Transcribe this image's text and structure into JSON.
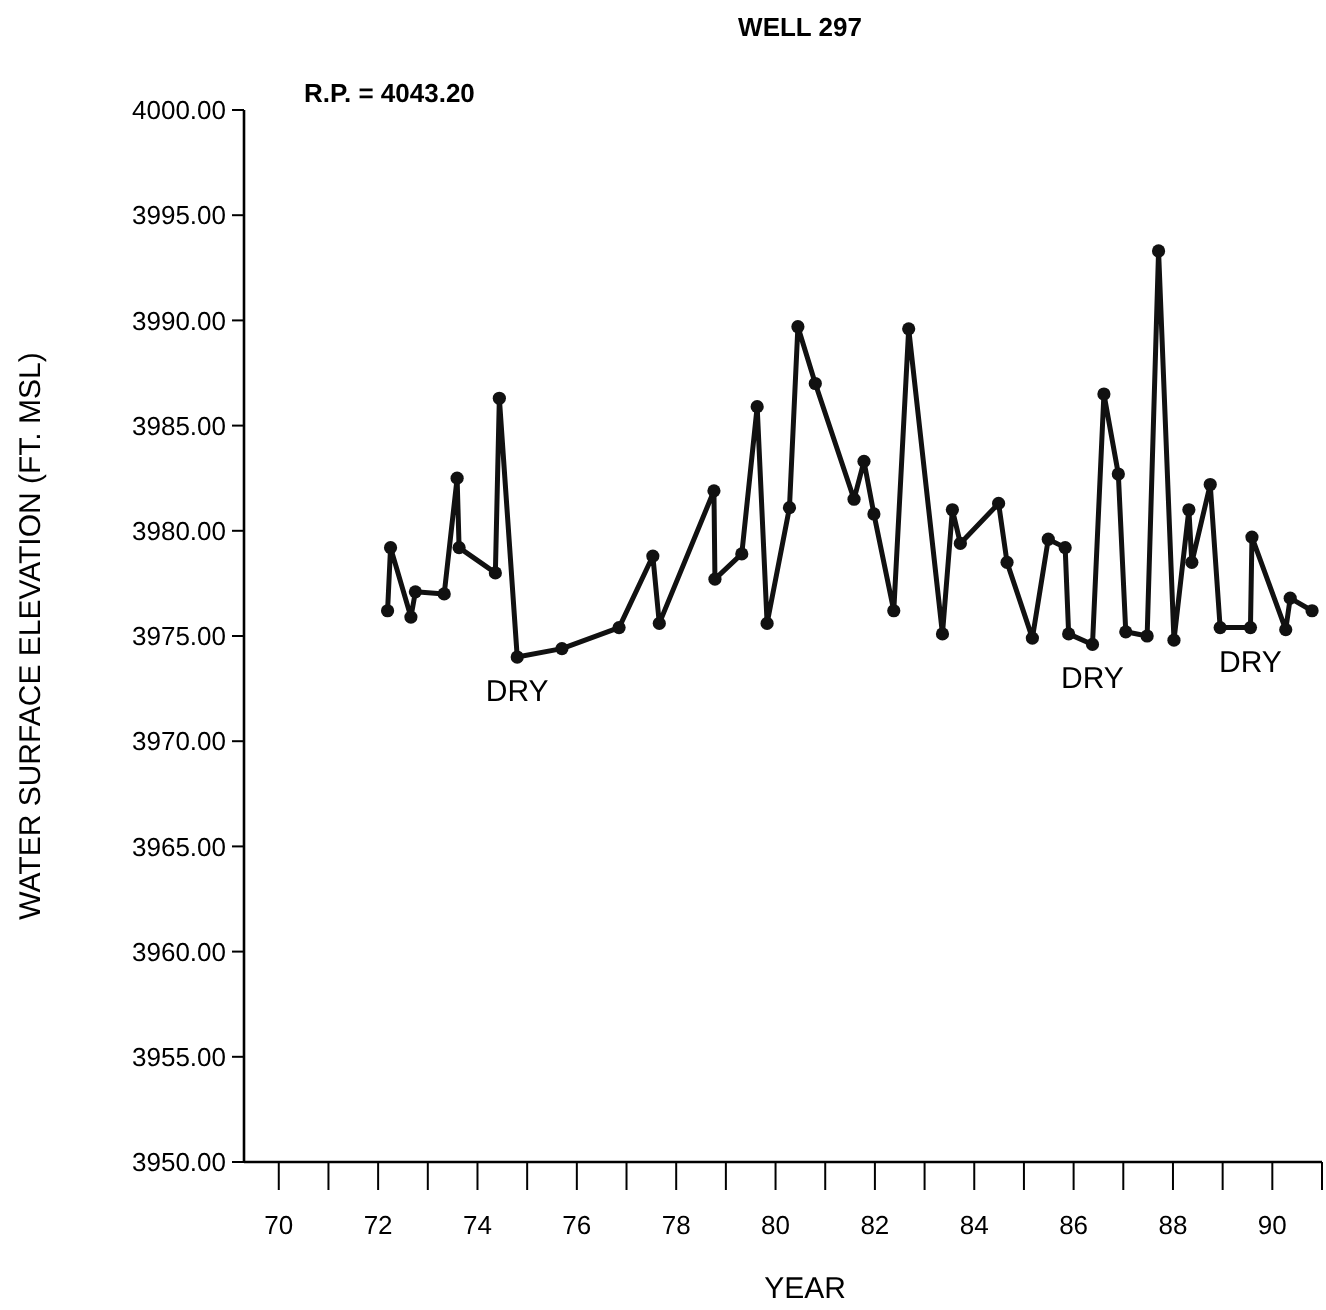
{
  "chart_data": {
    "type": "line",
    "title": "WELL 297",
    "subtitle": "R.P. = 4043.20",
    "xlabel": "YEAR",
    "ylabel": "WATER SURFACE ELEVATION (FT. MSL)",
    "x": [
      72.19,
      72.25,
      72.66,
      72.75,
      73.33,
      73.59,
      73.63,
      74.36,
      74.44,
      74.8,
      75.7,
      76.85,
      77.53,
      77.66,
      78.76,
      78.78,
      79.32,
      79.63,
      79.83,
      80.28,
      80.45,
      80.8,
      81.58,
      81.78,
      81.98,
      82.38,
      82.68,
      83.36,
      83.56,
      83.72,
      84.49,
      84.66,
      85.17,
      85.49,
      85.83,
      85.9,
      86.38,
      86.61,
      86.9,
      87.05,
      87.48,
      87.71,
      88.02,
      88.32,
      88.38,
      88.75,
      88.95,
      89.56,
      89.59,
      90.27,
      90.36,
      90.8
    ],
    "series": [
      {
        "color": "#111111",
        "values": [
          3976.2,
          3979.2,
          3975.9,
          3977.1,
          3977.0,
          3982.5,
          3979.2,
          3978.0,
          3986.3,
          3974.0,
          3974.4,
          3975.4,
          3978.8,
          3975.6,
          3981.9,
          3977.7,
          3978.9,
          3985.9,
          3975.6,
          3981.1,
          3989.7,
          3987.0,
          3981.5,
          3983.3,
          3980.8,
          3976.2,
          3989.6,
          3975.1,
          3981.0,
          3979.4,
          3981.3,
          3978.5,
          3974.9,
          3979.6,
          3979.2,
          3975.1,
          3974.6,
          3986.5,
          3982.7,
          3975.2,
          3975.0,
          3993.3,
          3974.8,
          3981.0,
          3978.5,
          3982.2,
          3975.4,
          3975.4,
          3979.7,
          3975.3,
          3976.8,
          3976.2
        ]
      }
    ],
    "xlim": [
      69.3,
      91.0
    ],
    "ylim": [
      3950,
      4000
    ],
    "xticks": [
      70,
      {
        "value": 71,
        "label": null
      },
      72,
      {
        "value": 73,
        "label": null
      },
      74,
      {
        "value": 75,
        "label": null
      },
      76,
      {
        "value": 77,
        "label": null
      },
      78,
      {
        "value": 79,
        "label": null
      },
      80,
      {
        "value": 81,
        "label": null
      },
      82,
      {
        "value": 83,
        "label": null
      },
      84,
      {
        "value": 85,
        "label": null
      },
      86,
      {
        "value": 87,
        "label": null
      },
      88,
      {
        "value": 89,
        "label": null
      },
      90,
      {
        "value": 91,
        "label": null
      }
    ],
    "yticks": [
      {
        "value": 3950,
        "label": "3950.00"
      },
      {
        "value": 3955,
        "label": "3955.00"
      },
      {
        "value": 3960,
        "label": "3960.00"
      },
      {
        "value": 3965,
        "label": "3965.00"
      },
      {
        "value": 3970,
        "label": "3970.00"
      },
      {
        "value": 3975,
        "label": "3975.00"
      },
      {
        "value": 3980,
        "label": "3980.00"
      },
      {
        "value": 3985,
        "label": "3985.00"
      },
      {
        "value": 3990,
        "label": "3990.00"
      },
      {
        "value": 3995,
        "label": "3995.00"
      },
      {
        "value": 4000,
        "label": "4000.00"
      }
    ],
    "annotations": [
      {
        "text": "DRY",
        "x": 74.8,
        "y": 3974.0
      },
      {
        "text": "DRY",
        "x": 86.38,
        "y": 3974.6
      },
      {
        "text": "DRY",
        "x": 89.56,
        "y": 3975.4
      }
    ],
    "marker": "circle",
    "line_style": "solid",
    "grid": false
  }
}
